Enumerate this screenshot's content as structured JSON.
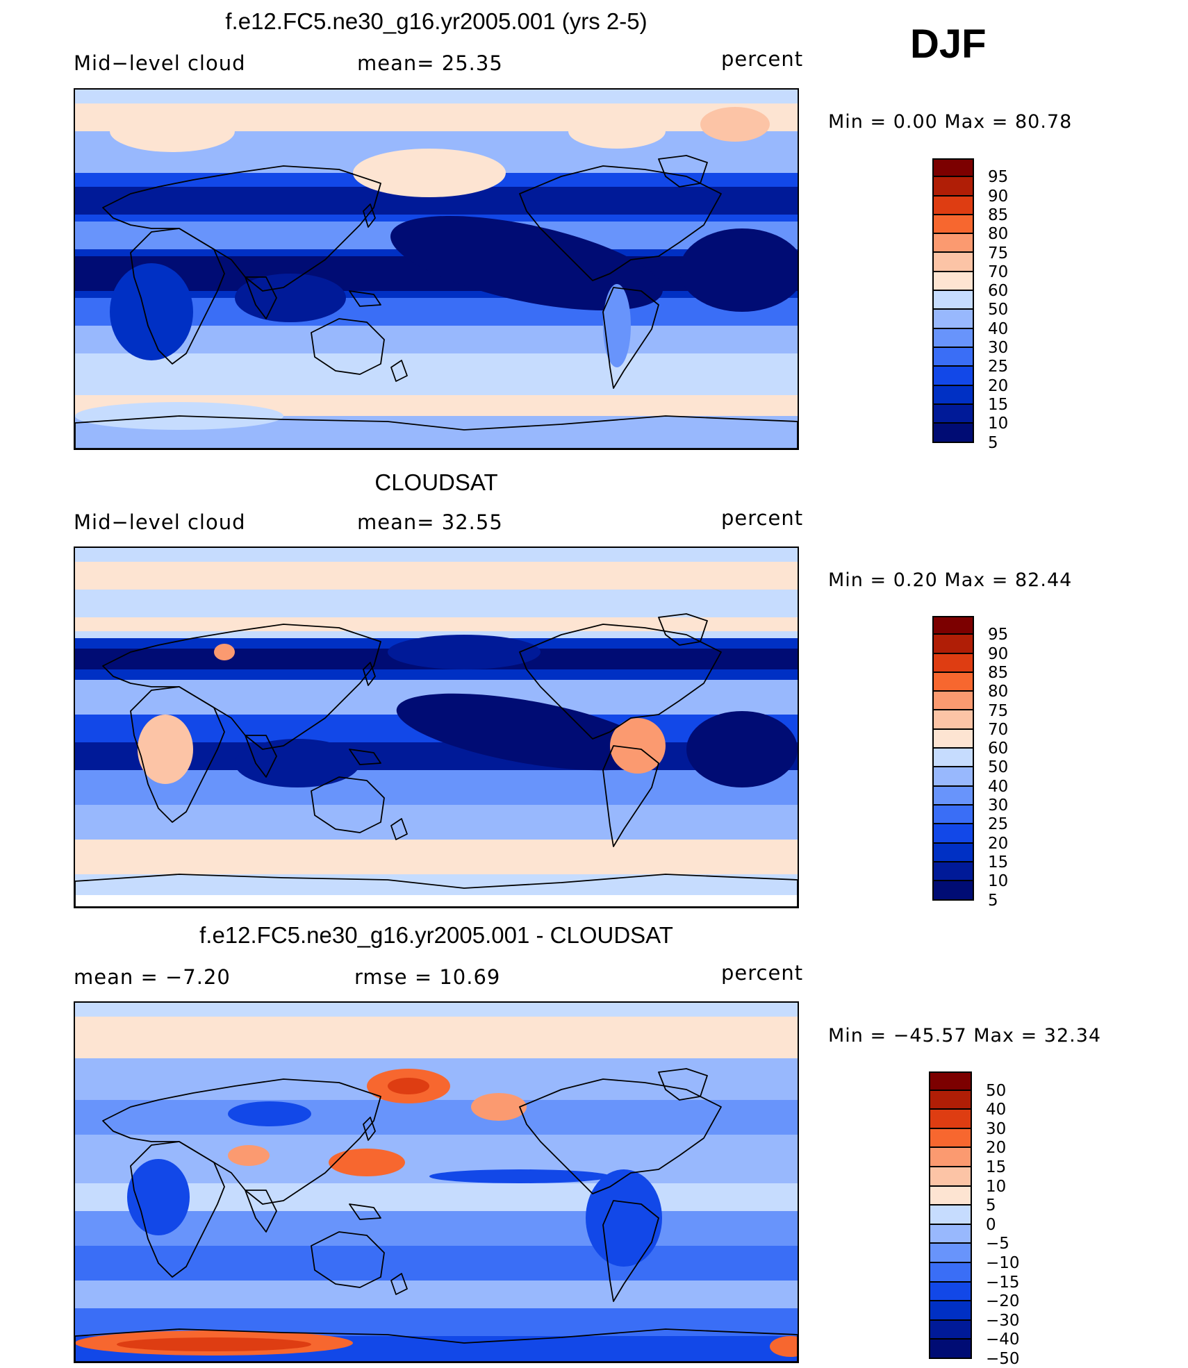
{
  "season": "DJF",
  "palette": {
    "levels12": [
      "#000c74",
      "#001a98",
      "#0030c4",
      "#1248e8",
      "#3a6ef6",
      "#6894fb",
      "#98b8fd",
      "#c6dcfe",
      "#fde4d2",
      "#fcc4a6",
      "#fb9a70",
      "#f7672f",
      "#de3d12",
      "#b01e06",
      "#7c0000"
    ]
  },
  "panels": [
    {
      "id": "model",
      "title": "f.e12.FC5.ne30_g16.yr2005.001 (yrs 2-5)",
      "left_label": "Mid−level cloud",
      "center_label": "mean=   25.35",
      "right_label": "percent",
      "minmax": "Min  =      0.00  Max  =    80.78",
      "colorbar_labels": [
        "95",
        "90",
        "85",
        "80",
        "75",
        "70",
        "60",
        "50",
        "40",
        "30",
        "25",
        "20",
        "15",
        "10",
        "5"
      ]
    },
    {
      "id": "obs",
      "title": "CLOUDSAT",
      "left_label": "Mid−level cloud",
      "center_label": "mean=   32.55",
      "right_label": "percent",
      "minmax": "Min  =      0.20  Max  =    82.44",
      "colorbar_labels": [
        "95",
        "90",
        "85",
        "80",
        "75",
        "70",
        "60",
        "50",
        "40",
        "30",
        "25",
        "20",
        "15",
        "10",
        "5"
      ]
    },
    {
      "id": "diff",
      "title": "f.e12.FC5.ne30_g16.yr2005.001 - CLOUDSAT",
      "left_label": "mean  =    −7.20",
      "center_label": "rmse  =    10.69",
      "right_label": "percent",
      "minmax": "Min  = −45.57  Max  =    32.34",
      "colorbar_labels": [
        "50",
        "40",
        "30",
        "20",
        "15",
        "10",
        "5",
        "0",
        "−5",
        "−10",
        "−15",
        "−20",
        "−30",
        "−40",
        "−50"
      ]
    }
  ]
}
